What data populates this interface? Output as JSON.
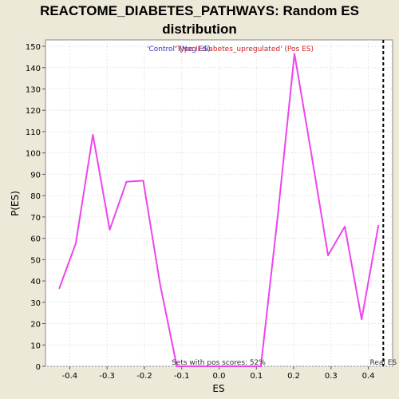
{
  "chart_data": {
    "type": "line",
    "title_line1": "REACTOME_DIABETES_PATHWAYS: Random ES",
    "title_line2": "distribution",
    "xlabel": "ES",
    "ylabel": "P(ES)",
    "xlim": [
      -0.465,
      0.465
    ],
    "ylim": [
      0,
      153
    ],
    "x_ticks": [
      -0.4,
      -0.3,
      -0.2,
      -0.1,
      0.0,
      0.1,
      0.2,
      0.3,
      0.4
    ],
    "x_tick_labels": [
      "-0.4",
      "-0.3",
      "-0.2",
      "-0.1",
      "0.0",
      "0.1",
      "0.2",
      "0.3",
      "0.4"
    ],
    "y_ticks": [
      0,
      10,
      20,
      30,
      40,
      50,
      60,
      70,
      80,
      90,
      100,
      110,
      120,
      130,
      140,
      150
    ],
    "y_tick_labels": [
      "0",
      "10",
      "20",
      "30",
      "40",
      "50",
      "60",
      "70",
      "80",
      "90",
      "100",
      "110",
      "120",
      "130",
      "140",
      "150"
    ],
    "grid": true,
    "series": [
      {
        "name": "",
        "color": "#ee44ee",
        "x": [
          -0.428,
          -0.384,
          -0.338,
          -0.293,
          -0.248,
          -0.203,
          -0.158,
          -0.113,
          -0.068,
          -0.023,
          0.022,
          0.067,
          0.112,
          0.157,
          0.202,
          0.247,
          0.292,
          0.337,
          0.382,
          0.427
        ],
        "y": [
          36.5,
          57.5,
          108.5,
          64,
          86.5,
          87,
          38.5,
          0,
          0,
          0,
          0,
          0,
          0,
          70,
          146.5,
          100,
          52,
          65.5,
          22,
          66
        ]
      }
    ],
    "real_es": 0.44,
    "real_es_label": "Real ES",
    "legend_text_neg": "'Control' (Neg ES)",
    "legend_text_pos": "'Type II diabetes_upregulated' (Pos ES)",
    "annotation": "Sets with pos scores: 52%",
    "colors": {
      "background": "#ece9d8",
      "plot_bg": "#ffffff",
      "line": "#ee44ee",
      "neg_legend": "#3333bb",
      "pos_legend": "#cc2222",
      "grid": "#e6e6e6"
    }
  }
}
